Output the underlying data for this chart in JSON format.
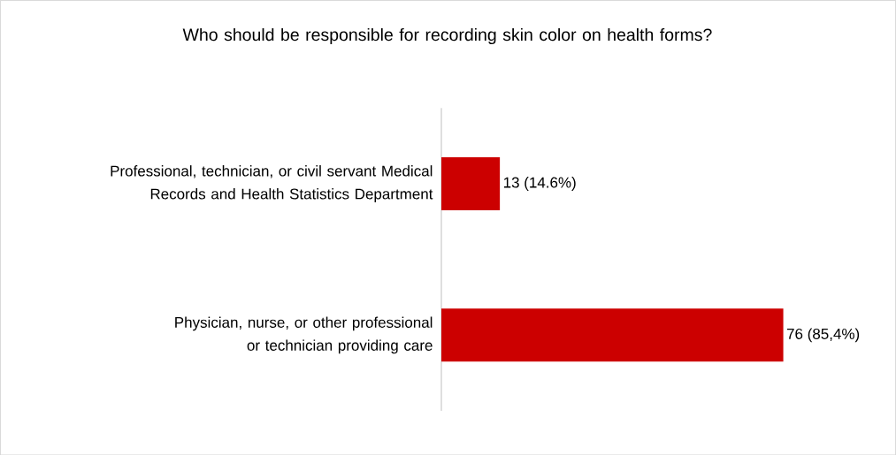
{
  "chart_data": {
    "type": "bar",
    "orientation": "horizontal",
    "title": "Who should be responsible for recording skin color on health forms?",
    "categories": [
      "Professional, technician, or civil servant Medical Records and Health Statistics Department",
      "Physician, nurse, or other professional or technician providing care"
    ],
    "values": [
      13,
      76
    ],
    "value_labels": [
      "13 (14.6%)",
      "76 (85,4%)"
    ],
    "color": "#cc0000"
  }
}
